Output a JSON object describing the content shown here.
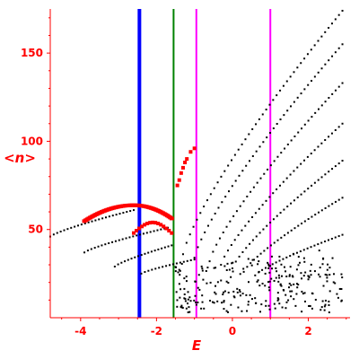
{
  "chart_data": {
    "type": "scatter",
    "xlabel": "E",
    "ylabel": "<n>",
    "xlim": [
      -4.8,
      3.1
    ],
    "ylim": [
      0,
      175
    ],
    "x_ticks": [
      -4,
      -2,
      0,
      2
    ],
    "x_tick_labels": [
      "-4",
      "-2",
      "0",
      "2"
    ],
    "y_ticks": [
      50,
      100,
      150
    ],
    "y_tick_labels": [
      "50",
      "100",
      "150"
    ],
    "colors": {
      "axes": "#ff0000",
      "black_points": "#000000",
      "red_points": "#ff0000"
    },
    "vertical_lines": [
      {
        "x": -2.45,
        "color": "#0000ff"
      },
      {
        "x": -1.55,
        "color": "#008000"
      },
      {
        "x": -0.95,
        "color": "#ff00ff"
      },
      {
        "x": 1.0,
        "color": "#ff00ff"
      }
    ],
    "black_series": [
      {
        "x_range": [
          -4.8,
          -2.6
        ],
        "y_range": [
          46,
          61
        ]
      },
      {
        "x_range": [
          -3.9,
          -1.7
        ],
        "y_range": [
          37,
          51
        ]
      },
      {
        "x_range": [
          -3.1,
          -1.6
        ],
        "y_range": [
          29,
          41
        ]
      },
      {
        "x_range": [
          -2.4,
          -1.0
        ],
        "y_range": [
          25,
          33
        ]
      },
      {
        "x_range": [
          -1.3,
          2.9
        ],
        "y_range": [
          36,
          174
        ]
      },
      {
        "x_range": [
          -1.0,
          2.9
        ],
        "y_range": [
          34,
          155
        ]
      },
      {
        "x_range": [
          -0.6,
          2.9
        ],
        "y_range": [
          32,
          133
        ]
      },
      {
        "x_range": [
          -0.3,
          2.9
        ],
        "y_range": [
          30,
          110
        ]
      },
      {
        "x_range": [
          0.0,
          2.9
        ],
        "y_range": [
          28,
          89
        ]
      },
      {
        "x_range": [
          0.3,
          2.9
        ],
        "y_range": [
          26,
          68
        ]
      },
      {
        "x_range": [
          0.6,
          2.9
        ],
        "y_range": [
          24,
          47
        ]
      }
    ],
    "red_series": {
      "arc": {
        "x_range": [
          -3.9,
          -1.6
        ],
        "y_peak": 63.5,
        "x_peak": -2.6,
        "y_end": 56
      },
      "lower_arc": {
        "x_range": [
          -2.6,
          -1.6
        ],
        "y_range": [
          48,
          54
        ]
      },
      "upward_points": [
        {
          "x": -1.45,
          "y": 75
        },
        {
          "x": -1.4,
          "y": 78
        },
        {
          "x": -1.35,
          "y": 82
        },
        {
          "x": -1.3,
          "y": 85
        },
        {
          "x": -1.25,
          "y": 88
        },
        {
          "x": -1.2,
          "y": 90
        },
        {
          "x": -1.1,
          "y": 94
        },
        {
          "x": -1.0,
          "y": 96
        }
      ]
    }
  }
}
